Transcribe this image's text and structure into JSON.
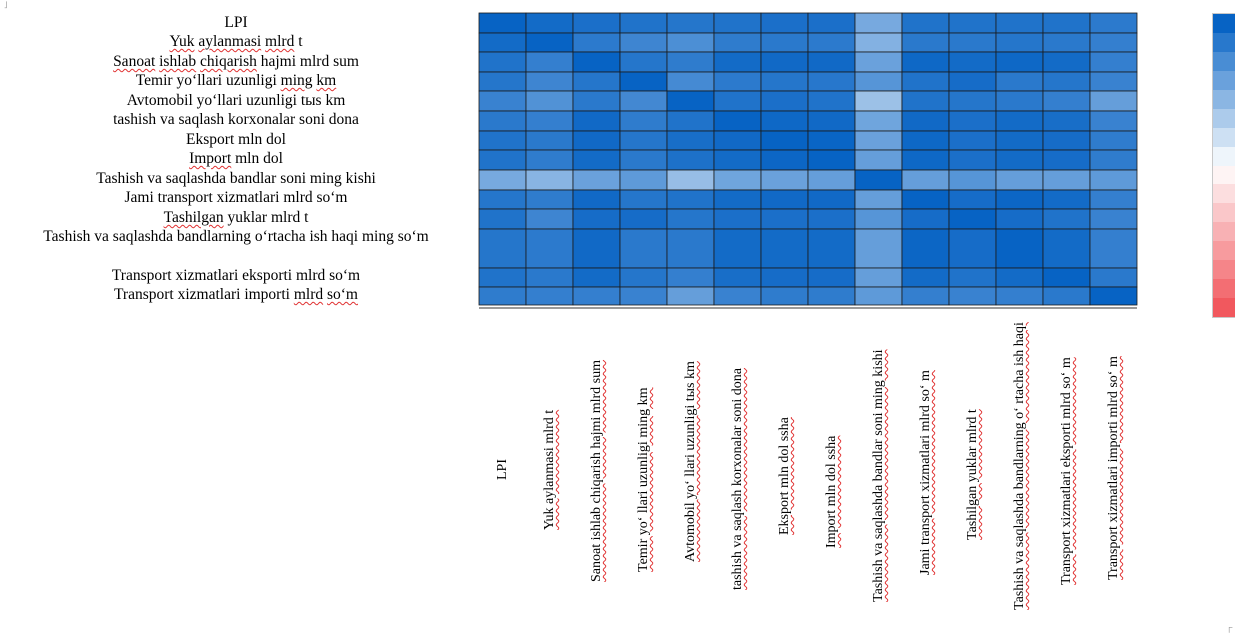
{
  "chart_data": {
    "type": "heatmap",
    "row_labels": [
      "LPI",
      "Yuk aylanmasi mlrd t",
      "Sanoat ishlab chiqarish hajmi  mlrd sum",
      "Temir yo‘llari uzunligi ming  km",
      "Avtomobil yo‘llari uzunligi tыs km",
      "tashish va saqlash korxonalar soni dona",
      "Eksport mln dol",
      "Import  mln dol",
      "Tashish va saqlashda bandlar soni ming kishi",
      "Jami transport  xizmatlari mlrd so‘m",
      "Tashilgan yuklar mlrd t",
      "Tashish va saqlashda bandlarning o‘rtacha ish haqi ming so‘m",
      "Transport xizmatlari eksporti mlrd so‘m",
      "Transport xizmatlari importi mlrd so‘m"
    ],
    "col_labels": [
      "LPI",
      "Yuk aylanmasi mlrd t",
      "Sanoat ishlab chiqarish hajmi  mlrd sum",
      "Temir yo‘  llari uzunligi ming  km",
      "Avtomobil yo‘  llari uzunligi tыs km",
      "tashish va saqlash korxonalar soni dona",
      "Eksport mln dol ssha",
      "Import  mln dol ssha",
      "Tashish va saqlashda bandlar soni ming kishi",
      "Jami transport  xizmatlari mlrd so‘  m",
      "Tashilgan yuklar mlrd t",
      "Tashish va saqlashda bandlarning o‘  rtacha ish haqi",
      "Transport xizmatlari eksporti mlrd so‘  m",
      "Transport xizmatlari importi mlrd so‘  m"
    ],
    "values": [
      [
        1.0,
        0.95,
        0.92,
        0.9,
        0.88,
        0.9,
        0.92,
        0.92,
        0.55,
        0.9,
        0.9,
        0.9,
        0.9,
        0.85
      ],
      [
        0.95,
        1.0,
        0.85,
        0.78,
        0.72,
        0.84,
        0.86,
        0.85,
        0.5,
        0.86,
        0.86,
        0.88,
        0.86,
        0.82
      ],
      [
        0.9,
        0.82,
        1.0,
        0.88,
        0.84,
        0.95,
        0.96,
        0.96,
        0.6,
        0.97,
        0.95,
        0.97,
        0.95,
        0.82
      ],
      [
        0.88,
        0.78,
        0.88,
        1.0,
        0.75,
        0.85,
        0.88,
        0.87,
        0.68,
        0.9,
        0.94,
        0.86,
        0.88,
        0.8
      ],
      [
        0.8,
        0.7,
        0.86,
        0.76,
        1.0,
        0.9,
        0.92,
        0.9,
        0.4,
        0.9,
        0.88,
        0.86,
        0.82,
        0.62
      ],
      [
        0.86,
        0.82,
        0.96,
        0.84,
        0.9,
        1.0,
        0.97,
        0.96,
        0.58,
        0.96,
        0.92,
        0.95,
        0.93,
        0.8
      ],
      [
        0.9,
        0.86,
        0.96,
        0.88,
        0.93,
        0.96,
        1.0,
        0.99,
        0.6,
        0.97,
        0.92,
        0.95,
        0.94,
        0.84
      ],
      [
        0.9,
        0.84,
        0.95,
        0.86,
        0.91,
        0.95,
        0.98,
        1.0,
        0.62,
        0.97,
        0.92,
        0.95,
        0.94,
        0.84
      ],
      [
        0.55,
        0.48,
        0.6,
        0.65,
        0.42,
        0.58,
        0.6,
        0.62,
        1.0,
        0.62,
        0.68,
        0.62,
        0.62,
        0.65
      ],
      [
        0.88,
        0.84,
        0.96,
        0.88,
        0.9,
        0.95,
        0.96,
        0.96,
        0.62,
        1.0,
        0.94,
        0.98,
        0.95,
        0.82
      ],
      [
        0.9,
        0.78,
        0.94,
        0.94,
        0.88,
        0.92,
        0.92,
        0.92,
        0.68,
        0.94,
        1.0,
        0.94,
        0.9,
        0.8
      ],
      [
        0.88,
        0.85,
        0.96,
        0.86,
        0.86,
        0.95,
        0.95,
        0.95,
        0.62,
        0.98,
        0.94,
        1.0,
        0.95,
        0.82
      ],
      [
        0.9,
        0.86,
        0.95,
        0.88,
        0.82,
        0.93,
        0.94,
        0.94,
        0.62,
        0.95,
        0.9,
        0.95,
        1.0,
        0.86
      ],
      [
        0.84,
        0.82,
        0.82,
        0.8,
        0.62,
        0.8,
        0.84,
        0.84,
        0.65,
        0.82,
        0.8,
        0.82,
        0.86,
        1.0
      ]
    ],
    "color_scale": {
      "min_color": "#f1585e",
      "mid_color": "#ffffff",
      "max_color": "#0763c4",
      "range": [
        -1,
        1
      ]
    },
    "grid": true,
    "legend": "right"
  }
}
